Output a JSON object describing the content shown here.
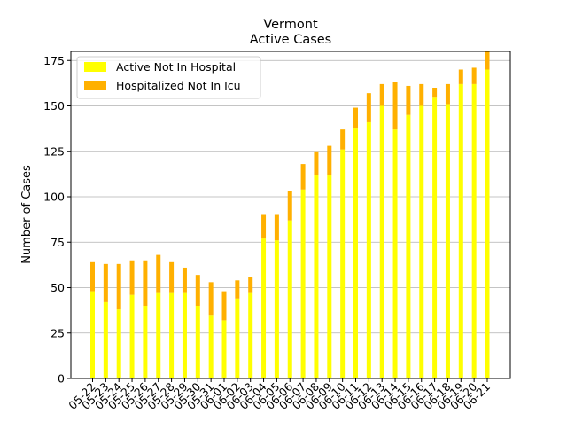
{
  "chart_data": {
    "type": "bar",
    "stacked": true,
    "title_line1": "Vermont",
    "title_line2": "Active Cases",
    "xlabel": "",
    "ylabel": "Number of Cases",
    "ylim": [
      0,
      180
    ],
    "yticks": [
      0,
      25,
      50,
      75,
      100,
      125,
      150,
      175
    ],
    "grid": "horizontal",
    "legend_position": "top-left",
    "categories": [
      "05-22",
      "05-23",
      "05-24",
      "05-25",
      "05-26",
      "05-27",
      "05-28",
      "05-29",
      "05-30",
      "05-31",
      "06-01",
      "06-02",
      "06-03",
      "06-04",
      "06-05",
      "06-06",
      "06-07",
      "06-08",
      "06-09",
      "06-10",
      "06-11",
      "06-12",
      "06-13",
      "06-14",
      "06-15",
      "06-16",
      "06-17",
      "06-18",
      "06-19",
      "06-20",
      "06-21"
    ],
    "series": [
      {
        "name": "Active Not In Hospital",
        "color": "#ffff00",
        "values": [
          48,
          42,
          38,
          46,
          40,
          47,
          47,
          47,
          40,
          35,
          32,
          44,
          47,
          77,
          76,
          87,
          104,
          112,
          112,
          126,
          138,
          141,
          150,
          137,
          145,
          150,
          155,
          151,
          162,
          162,
          170
        ]
      },
      {
        "name": "Hospitalized Not In Icu",
        "color": "#ffb000",
        "values": [
          16,
          21,
          25,
          19,
          25,
          21,
          17,
          14,
          17,
          18,
          16,
          10,
          9,
          13,
          14,
          16,
          14,
          13,
          16,
          11,
          11,
          16,
          12,
          26,
          16,
          12,
          5,
          11,
          8,
          9,
          10
        ]
      }
    ]
  }
}
